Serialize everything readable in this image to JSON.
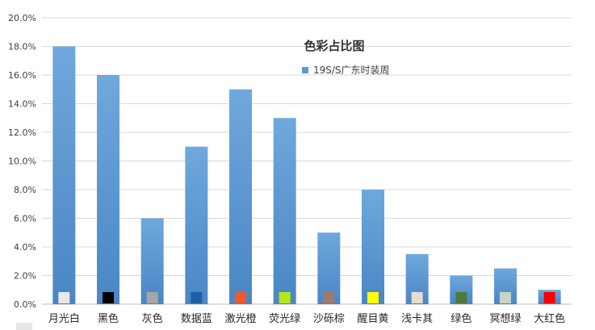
{
  "chart_data": {
    "type": "bar",
    "title": "色彩占比图",
    "xlabel": "",
    "ylabel": "",
    "ylim": [
      0,
      0.2
    ],
    "yticks": [
      "0.0%",
      "2.0%",
      "4.0%",
      "6.0%",
      "8.0%",
      "10.0%",
      "12.0%",
      "14.0%",
      "16.0%",
      "18.0%",
      "20.0%"
    ],
    "grid": true,
    "legend_position": "top-center",
    "categories": [
      "月光白",
      "黑色",
      "灰色",
      "数据蓝",
      "激光橙",
      "荧光绿",
      "沙砾棕",
      "醒目黄",
      "浅卡其",
      "绿色",
      "冥想绿",
      "大红色"
    ],
    "series": [
      {
        "name": "19S/S广东时装周",
        "color": "#5b9bd5",
        "values": [
          0.18,
          0.16,
          0.06,
          0.11,
          0.15,
          0.13,
          0.05,
          0.08,
          0.035,
          0.02,
          0.025,
          0.01
        ]
      }
    ],
    "swatch_colors": [
      "#e8e8e8",
      "#000000",
      "#a6a6a6",
      "#1f5fa6",
      "#f05a28",
      "#b5e61d",
      "#9c7b6b",
      "#ffff00",
      "#e6ddd0",
      "#4d7a3a",
      "#c8d3c8",
      "#ff0000"
    ]
  }
}
